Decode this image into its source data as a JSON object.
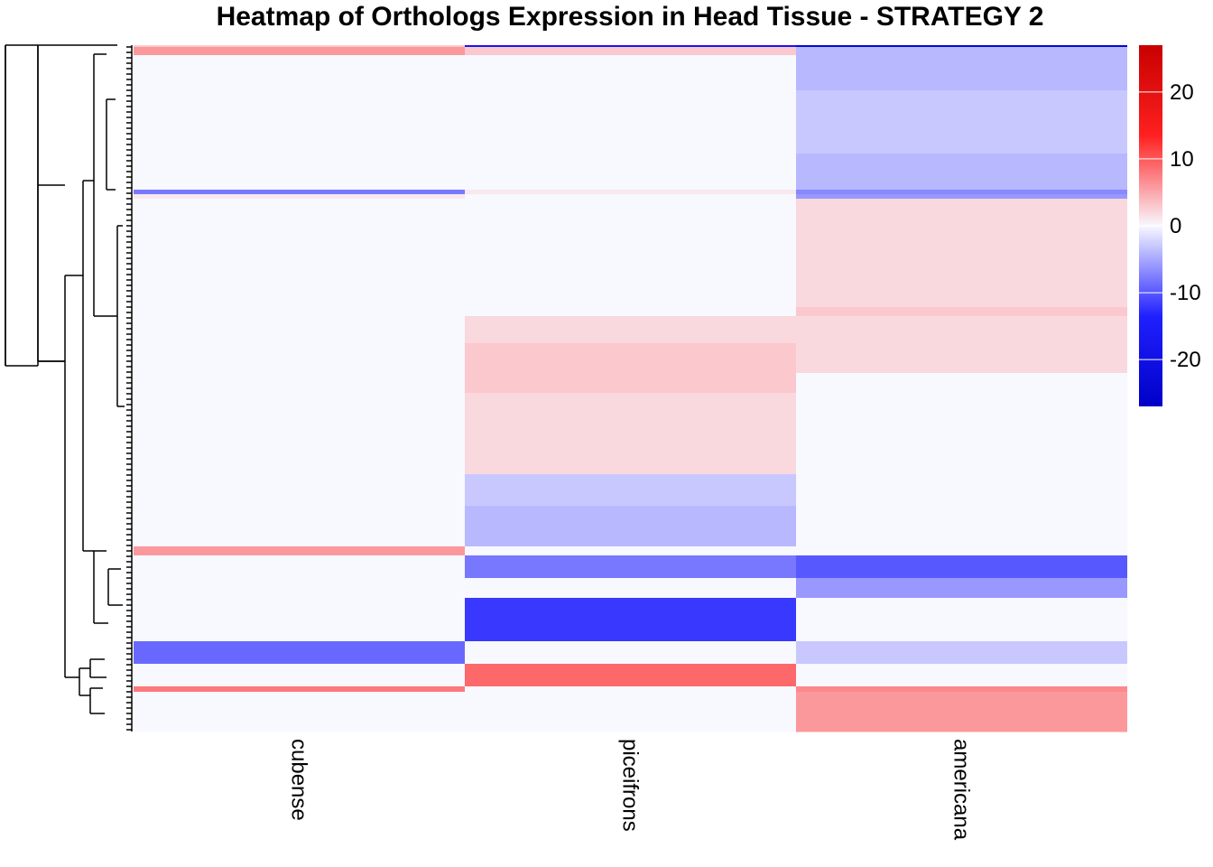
{
  "chart_data": {
    "type": "heatmap",
    "title": "Heatmap of Orthologs Expression in Head Tissue - STRATEGY 2",
    "columns": [
      "cubense",
      "piceifrons",
      "americana"
    ],
    "row_count": 760,
    "colorbar": {
      "min": -27,
      "max": 27,
      "ticks": [
        20,
        10,
        0,
        -10,
        -20
      ],
      "tick_labels": [
        "20",
        "10",
        "0",
        "-10",
        "-20"
      ],
      "colors": [
        "#0000C8",
        "#2020FF",
        "#F8F8FF",
        "#FF2020",
        "#C80000"
      ]
    },
    "row_blocks": [
      {
        "rows": [
          0,
          2
        ],
        "values": [
          3,
          -18,
          -24
        ]
      },
      {
        "rows": [
          2,
          11
        ],
        "values": [
          6,
          3,
          -4
        ]
      },
      {
        "rows": [
          11,
          50
        ],
        "values": [
          0,
          0,
          -4
        ]
      },
      {
        "rows": [
          50,
          120
        ],
        "values": [
          0,
          0,
          -3
        ]
      },
      {
        "rows": [
          120,
          160
        ],
        "values": [
          0,
          0,
          -4
        ]
      },
      {
        "rows": [
          160,
          165
        ],
        "values": [
          -8,
          1,
          -7
        ]
      },
      {
        "rows": [
          165,
          170
        ],
        "values": [
          1,
          0,
          -6
        ]
      },
      {
        "rows": [
          170,
          215
        ],
        "values": [
          0,
          0,
          2
        ]
      },
      {
        "rows": [
          215,
          290
        ],
        "values": [
          0,
          0,
          2
        ]
      },
      {
        "rows": [
          290,
          300
        ],
        "values": [
          0,
          0,
          3
        ]
      },
      {
        "rows": [
          300,
          330
        ],
        "values": [
          0,
          2,
          2
        ]
      },
      {
        "rows": [
          330,
          363
        ],
        "values": [
          0,
          3,
          2
        ]
      },
      {
        "rows": [
          363,
          385
        ],
        "values": [
          0,
          3,
          0
        ]
      },
      {
        "rows": [
          385,
          475
        ],
        "values": [
          0,
          2,
          0
        ]
      },
      {
        "rows": [
          475,
          510
        ],
        "values": [
          0,
          -3,
          0
        ]
      },
      {
        "rows": [
          510,
          555
        ],
        "values": [
          0,
          -4,
          0
        ]
      },
      {
        "rows": [
          555,
          565
        ],
        "values": [
          6,
          0,
          0
        ]
      },
      {
        "rows": [
          565,
          590
        ],
        "values": [
          0,
          -8,
          -10
        ]
      },
      {
        "rows": [
          590,
          612
        ],
        "values": [
          0,
          0,
          -6
        ]
      },
      {
        "rows": [
          612,
          660
        ],
        "values": [
          0,
          -12,
          0
        ]
      },
      {
        "rows": [
          660,
          685
        ],
        "values": [
          -9,
          0,
          -3
        ]
      },
      {
        "rows": [
          685,
          710
        ],
        "values": [
          0,
          9,
          0
        ]
      },
      {
        "rows": [
          710,
          716
        ],
        "values": [
          8,
          0,
          7
        ]
      },
      {
        "rows": [
          716,
          760
        ],
        "values": [
          0,
          0,
          6
        ]
      }
    ]
  }
}
